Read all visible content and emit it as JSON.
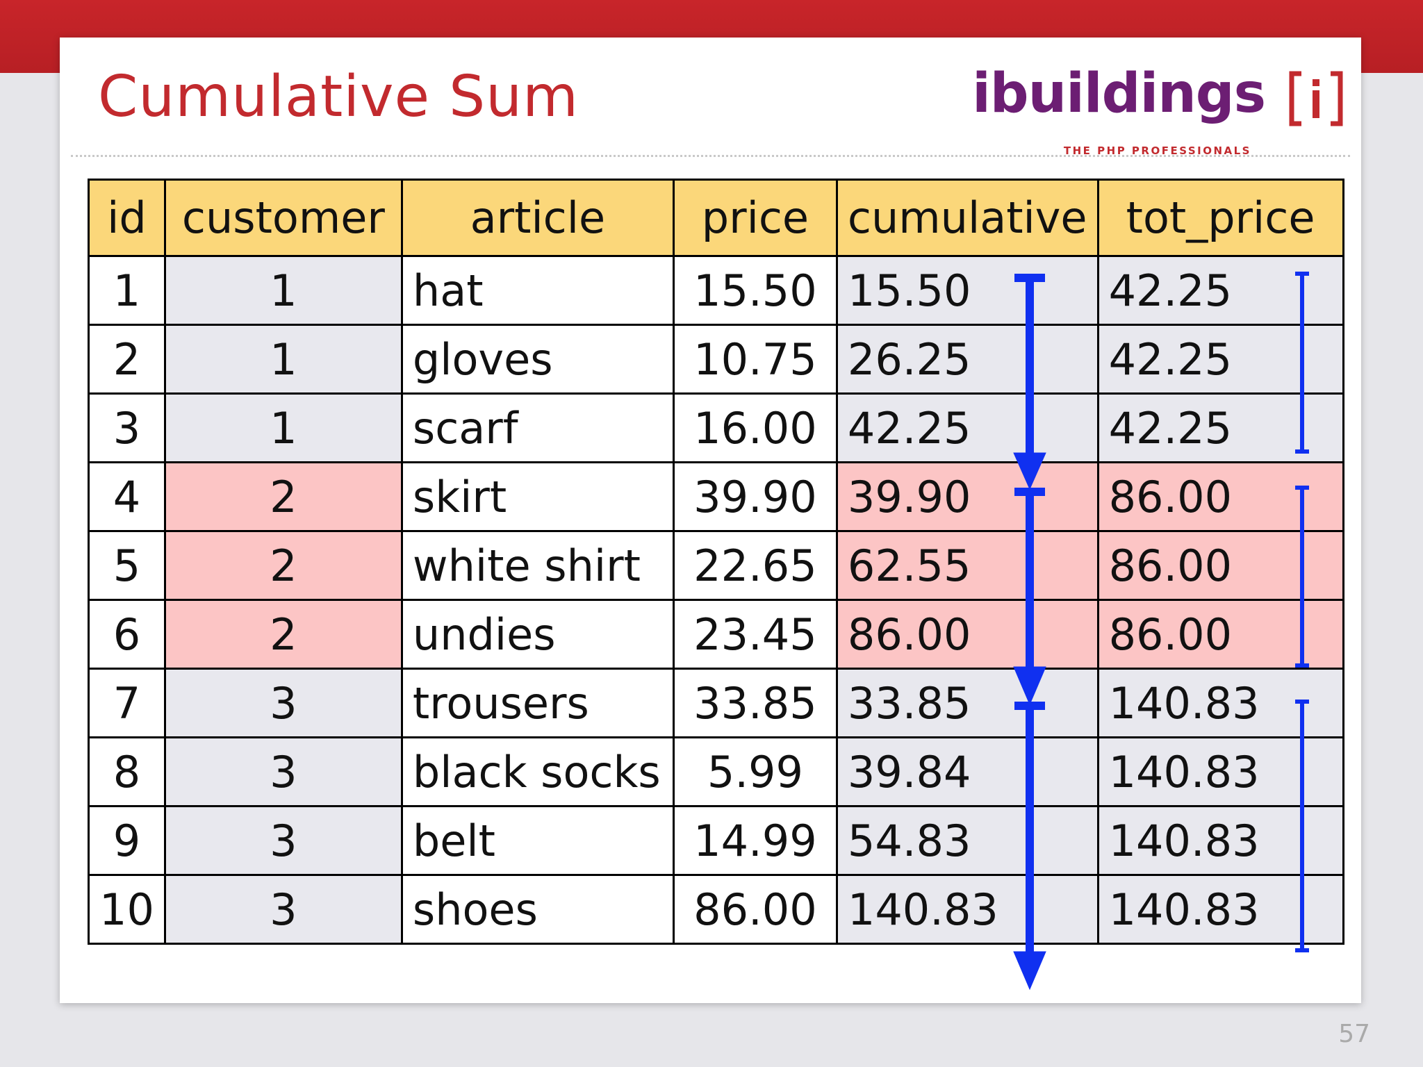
{
  "slide": {
    "title": "Cumulative Sum",
    "page_number": "57"
  },
  "logo": {
    "word": "ibuildings",
    "bracket": "[i]",
    "tagline": "THE PHP PROFESSIONALS"
  },
  "table": {
    "headers": {
      "id": "id",
      "customer": "customer",
      "article": "article",
      "price": "price",
      "cumulative": "cumulative",
      "tot_price": "tot_price"
    },
    "rows": [
      {
        "id": "1",
        "customer": "1",
        "article": "hat",
        "price": "15.50",
        "cumulative": "15.50",
        "tot_price": "42.25"
      },
      {
        "id": "2",
        "customer": "1",
        "article": "gloves",
        "price": "10.75",
        "cumulative": "26.25",
        "tot_price": "42.25"
      },
      {
        "id": "3",
        "customer": "1",
        "article": "scarf",
        "price": "16.00",
        "cumulative": "42.25",
        "tot_price": "42.25"
      },
      {
        "id": "4",
        "customer": "2",
        "article": "skirt",
        "price": "39.90",
        "cumulative": "39.90",
        "tot_price": "86.00"
      },
      {
        "id": "5",
        "customer": "2",
        "article": "white shirt",
        "price": "22.65",
        "cumulative": "62.55",
        "tot_price": "86.00"
      },
      {
        "id": "6",
        "customer": "2",
        "article": "undies",
        "price": "23.45",
        "cumulative": "86.00",
        "tot_price": "86.00"
      },
      {
        "id": "7",
        "customer": "3",
        "article": "trousers",
        "price": "33.85",
        "cumulative": "33.85",
        "tot_price": "140.83"
      },
      {
        "id": "8",
        "customer": "3",
        "article": "black socks",
        "price": "5.99",
        "cumulative": "39.84",
        "tot_price": "140.83"
      },
      {
        "id": "9",
        "customer": "3",
        "article": "belt",
        "price": "14.99",
        "cumulative": "54.83",
        "tot_price": "140.83"
      },
      {
        "id": "10",
        "customer": "3",
        "article": "shoes",
        "price": "86.00",
        "cumulative": "140.83",
        "tot_price": "140.83"
      }
    ]
  },
  "colors": {
    "header_bg": "#fbd77a",
    "highlight_bg": "#fcc5c5",
    "annotation": "#1030f0",
    "title": "#c22a2e",
    "logo": "#6c1e73"
  }
}
